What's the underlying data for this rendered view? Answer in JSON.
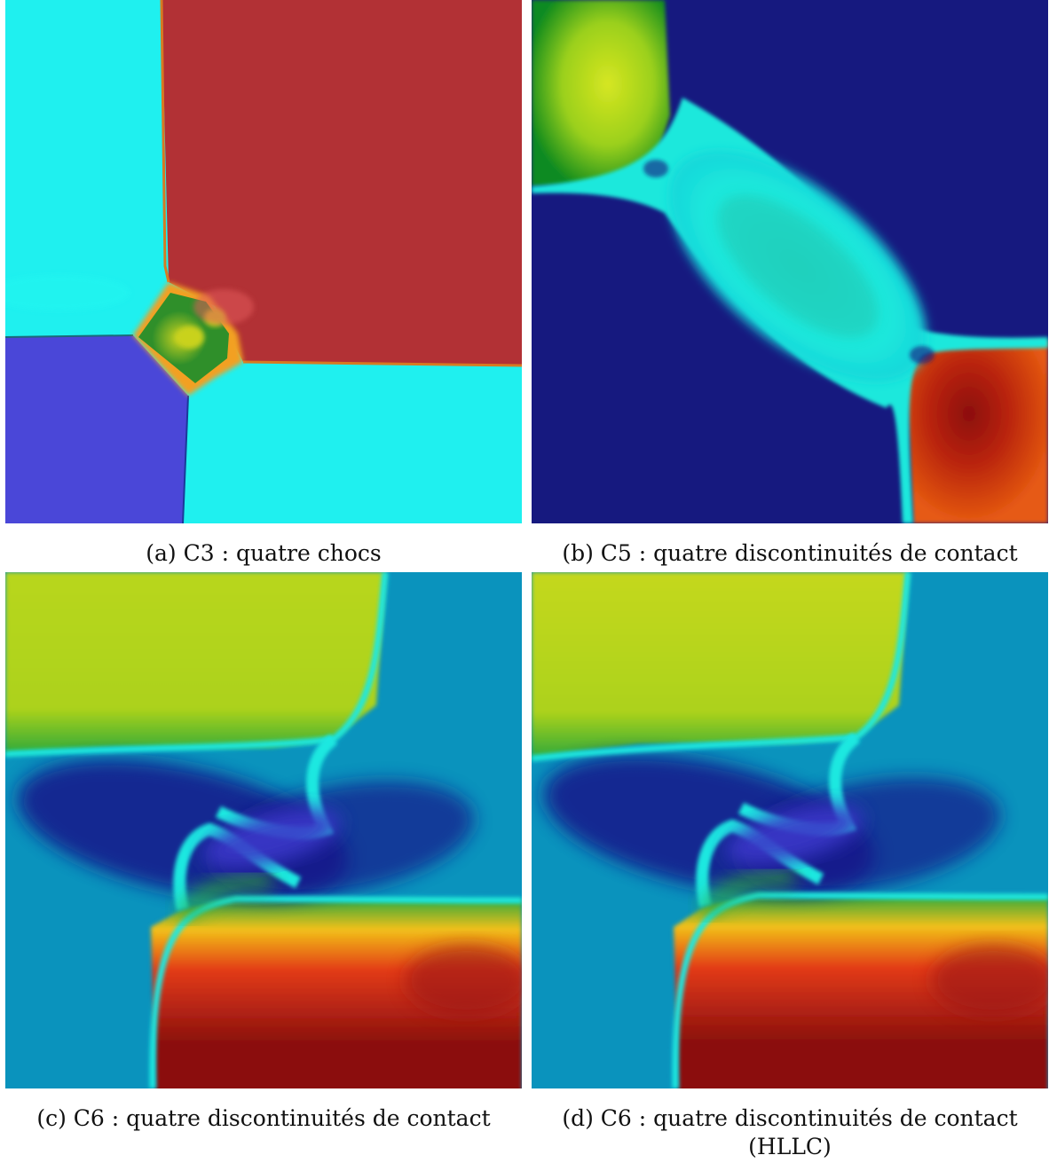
{
  "figure": {
    "panels": [
      {
        "id": "a",
        "caption": "(a) C3 : quatre chocs",
        "colors": {
          "cyan": "#1ff0ef",
          "red": "#b23135",
          "blue": "#4a47d8",
          "green": "#2f8f2a",
          "yellow": "#c9d21f",
          "orange": "#f2701f"
        }
      },
      {
        "id": "b",
        "caption": "(b) C5 : quatre discontinuités de contact",
        "colors": {
          "navy": "#16197f",
          "green": "#0e8a20",
          "yellow": "#c8e01a",
          "cyan": "#1ae8dc",
          "orange": "#e65a12",
          "darkred": "#8c0e0e"
        }
      },
      {
        "id": "c",
        "caption": "(c) C6 : quatre discontinuités de contact",
        "colors": {
          "teal": "#0a93bd",
          "yellowgreen": "#acd21a",
          "navy": "#14168a",
          "blue": "#3a37c9",
          "cyan": "#1fe8e0",
          "green": "#1e9e2e",
          "red": "#e23a14",
          "darkred": "#8b1010"
        }
      },
      {
        "id": "d",
        "caption_line1": "(d) C6 : quatre discontinuités de contact",
        "caption_line2": "(HLLC)",
        "colors": {
          "teal": "#0a93bd",
          "yellowgreen": "#acd21a",
          "navy": "#14168a",
          "blue": "#3a37c9",
          "cyan": "#1fe8e0",
          "green": "#1e9e2e",
          "red": "#e23a14",
          "darkred": "#8b1010"
        }
      }
    ]
  }
}
